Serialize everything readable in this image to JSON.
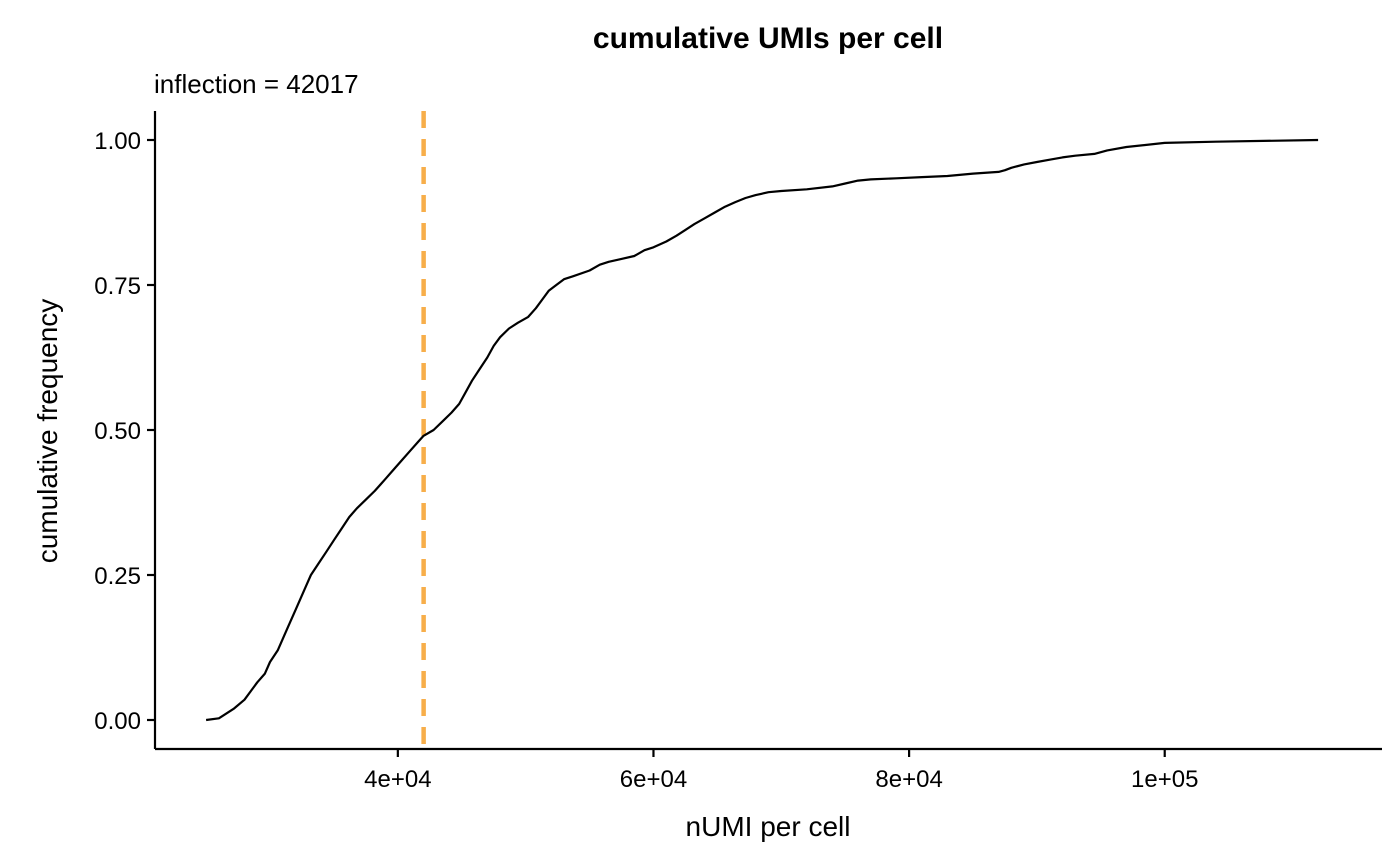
{
  "chart_data": {
    "type": "line",
    "title": "cumulative UMIs per cell",
    "subtitle": "inflection = 42017",
    "xlabel": "nUMI per cell",
    "ylabel": "cumulative frequency",
    "xlim": [
      21000,
      117000
    ],
    "ylim": [
      -0.05,
      1.05
    ],
    "xticks": [
      {
        "value": 40000,
        "label": "4e+04"
      },
      {
        "value": 60000,
        "label": "6e+04"
      },
      {
        "value": 80000,
        "label": "8e+04"
      },
      {
        "value": 100000,
        "label": "1e+05"
      }
    ],
    "yticks": [
      {
        "value": 0,
        "label": "0.00"
      },
      {
        "value": 0.25,
        "label": "0.25"
      },
      {
        "value": 0.5,
        "label": "0.50"
      },
      {
        "value": 0.75,
        "label": "0.75"
      },
      {
        "value": 1.0,
        "label": "1.00"
      }
    ],
    "grid": false,
    "inflection": {
      "value": 42017,
      "color": "#F7AE4A",
      "style": "dashed"
    },
    "series": [
      {
        "color": "#000000",
        "x": [
          25000,
          26000,
          26500,
          27200,
          28000,
          28500,
          29000,
          29600,
          30000,
          30600,
          31000,
          31400,
          32000,
          32400,
          32800,
          33200,
          33800,
          34400,
          35000,
          35600,
          36200,
          36800,
          37500,
          38200,
          39000,
          39600,
          40200,
          41000,
          41600,
          42017,
          42800,
          43500,
          44200,
          44800,
          45300,
          45800,
          46400,
          47000,
          47500,
          48000,
          48700,
          49400,
          50200,
          50800,
          51300,
          51800,
          52400,
          53000,
          53700,
          55000,
          55800,
          56500,
          57500,
          58500,
          59300,
          60000,
          61000,
          61800,
          62500,
          63200,
          64000,
          64800,
          65600,
          66400,
          67200,
          68000,
          69000,
          70000,
          72000,
          74000,
          75000,
          76000,
          77000,
          79000,
          81000,
          83000,
          85000,
          87000,
          87500,
          88000,
          89000,
          90000,
          91000,
          92000,
          93000,
          94500,
          95500,
          97000,
          100000,
          104000,
          112000
        ],
        "y": [
          0.0,
          0.003,
          0.01,
          0.02,
          0.035,
          0.05,
          0.065,
          0.08,
          0.1,
          0.12,
          0.14,
          0.16,
          0.19,
          0.21,
          0.23,
          0.25,
          0.27,
          0.29,
          0.31,
          0.33,
          0.35,
          0.365,
          0.38,
          0.395,
          0.415,
          0.43,
          0.445,
          0.465,
          0.48,
          0.49,
          0.5,
          0.515,
          0.53,
          0.545,
          0.565,
          0.585,
          0.605,
          0.625,
          0.645,
          0.66,
          0.675,
          0.685,
          0.695,
          0.71,
          0.725,
          0.74,
          0.75,
          0.76,
          0.765,
          0.775,
          0.785,
          0.79,
          0.795,
          0.8,
          0.81,
          0.815,
          0.825,
          0.835,
          0.845,
          0.855,
          0.865,
          0.875,
          0.885,
          0.893,
          0.9,
          0.905,
          0.91,
          0.912,
          0.915,
          0.92,
          0.925,
          0.93,
          0.932,
          0.934,
          0.936,
          0.938,
          0.942,
          0.945,
          0.948,
          0.952,
          0.958,
          0.962,
          0.966,
          0.97,
          0.973,
          0.976,
          0.982,
          0.988,
          0.995,
          0.997,
          1.0
        ]
      }
    ]
  }
}
